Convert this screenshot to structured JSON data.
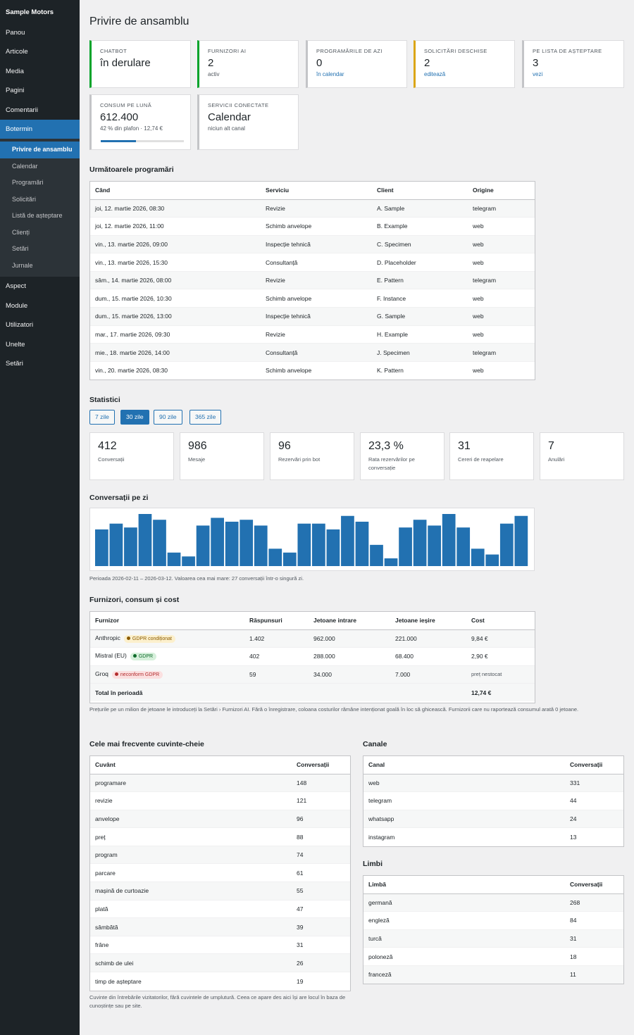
{
  "sidebar": {
    "brand": "Sample Motors",
    "top_items": [
      "Panou",
      "Articole",
      "Media",
      "Pagini",
      "Comentarii"
    ],
    "active_item": "Botermin",
    "sub_items": [
      "Privire de ansamblu",
      "Calendar",
      "Programări",
      "Solicitări",
      "Listă de așteptare",
      "Clienți",
      "Setări",
      "Jurnale"
    ],
    "bottom_items": [
      "Aspect",
      "Module",
      "Utilizatori",
      "Unelte",
      "Setări"
    ]
  },
  "page": {
    "title": "Privire de ansamblu"
  },
  "status_cards": [
    {
      "label": "Chatbot",
      "value": "în derulare",
      "sub": "",
      "accent": "#00a32a"
    },
    {
      "label": "Furnizori AI",
      "value": "2",
      "sub": "activ",
      "accent": "#00a32a"
    },
    {
      "label": "Programările de azi",
      "value": "0",
      "sub": "în calendar",
      "accent": "#c3c4c7"
    },
    {
      "label": "Solicitări deschise",
      "value": "2",
      "sub": "editează",
      "accent": "#dba617"
    },
    {
      "label": "Pe lista de așteptare",
      "value": "3",
      "sub": "vezi",
      "accent": "#c3c4c7"
    },
    {
      "label": "Consum pe lună",
      "value": "612.400",
      "sub": "42 % din plafon · 12,74 €",
      "accent": "#c3c4c7",
      "progress": 0.42
    },
    {
      "label": "Servicii conectate",
      "value": "Calendar",
      "sub": "niciun alt canal",
      "accent": "#c3c4c7"
    }
  ],
  "appointments": {
    "title": "Următoarele programări",
    "headers": [
      "Când",
      "Serviciu",
      "Client",
      "Origine"
    ],
    "rows": [
      [
        "joi, 12. martie 2026, 08:30",
        "Revizie",
        "A. Sample",
        "telegram"
      ],
      [
        "joi, 12. martie 2026, 11:00",
        "Schimb anvelope",
        "B. Example",
        "web"
      ],
      [
        "vin., 13. martie 2026, 09:00",
        "Inspecție tehnică",
        "C. Specimen",
        "web"
      ],
      [
        "vin., 13. martie 2026, 15:30",
        "Consultanță",
        "D. Placeholder",
        "web"
      ],
      [
        "sâm., 14. martie 2026, 08:00",
        "Revizie",
        "E. Pattern",
        "telegram"
      ],
      [
        "dum., 15. martie 2026, 10:30",
        "Schimb anvelope",
        "F. Instance",
        "web"
      ],
      [
        "dum., 15. martie 2026, 13:00",
        "Inspecție tehnică",
        "G. Sample",
        "web"
      ],
      [
        "mar., 17. martie 2026, 09:30",
        "Revizie",
        "H. Example",
        "web"
      ],
      [
        "mie., 18. martie 2026, 14:00",
        "Consultanță",
        "J. Specimen",
        "telegram"
      ],
      [
        "vin., 20. martie 2026, 08:30",
        "Schimb anvelope",
        "K. Pattern",
        "web"
      ]
    ]
  },
  "stats": {
    "title": "Statistici",
    "ranges": [
      "7 zile",
      "30 zile",
      "90 zile",
      "365 zile"
    ],
    "active_range": "30 zile",
    "cards": [
      {
        "value": "412",
        "label": "Conversații"
      },
      {
        "value": "986",
        "label": "Mesaje"
      },
      {
        "value": "96",
        "label": "Rezervări prin bot"
      },
      {
        "value": "23,3 %",
        "label": "Rata rezervărilor pe conversație"
      },
      {
        "value": "31",
        "label": "Cereri de reapelare"
      },
      {
        "value": "7",
        "label": "Anulări"
      }
    ]
  },
  "chart_title": "Conversații pe zi",
  "chart_data": {
    "type": "bar",
    "x": [
      "2026-02-11",
      "2026-02-12",
      "2026-02-13",
      "2026-02-14",
      "2026-02-15",
      "2026-02-16",
      "2026-02-17",
      "2026-02-18",
      "2026-02-19",
      "2026-02-20",
      "2026-02-21",
      "2026-02-22",
      "2026-02-23",
      "2026-02-24",
      "2026-02-25",
      "2026-02-26",
      "2026-02-27",
      "2026-02-28",
      "2026-03-01",
      "2026-03-02",
      "2026-03-03",
      "2026-03-04",
      "2026-03-05",
      "2026-03-06",
      "2026-03-07",
      "2026-03-08",
      "2026-03-09",
      "2026-03-10",
      "2026-03-11",
      "2026-03-12"
    ],
    "values": [
      19,
      22,
      20,
      27,
      24,
      7,
      5,
      21,
      25,
      23,
      24,
      21,
      9,
      7,
      22,
      22,
      19,
      26,
      23,
      11,
      4,
      20,
      24,
      21,
      27,
      20,
      9,
      6,
      22,
      26
    ],
    "ylim": [
      0,
      27
    ],
    "color": "#2271b1"
  },
  "chart_note": "Perioada 2026-02-11 – 2026-03-12. Valoarea cea mai mare: 27 conversații într-o singură zi.",
  "providers": {
    "title": "Furnizori, consum și cost",
    "headers": [
      "Furnizor",
      "Răspunsuri",
      "Jetoane intrare",
      "Jetoane ieșire",
      "Cost"
    ],
    "rows": [
      {
        "name": "Anthropic",
        "badge": "GDPR condiționat",
        "badge_type": "warn",
        "responses": "1.402",
        "tokens_in": "962.000",
        "tokens_out": "221.000",
        "cost": "9,84 €"
      },
      {
        "name": "Mistral (EU)",
        "badge": "GDPR",
        "badge_type": "ok",
        "responses": "402",
        "tokens_in": "288.000",
        "tokens_out": "68.400",
        "cost": "2,90 €"
      },
      {
        "name": "Groq",
        "badge": "neconform GDPR",
        "badge_type": "bad",
        "responses": "59",
        "tokens_in": "34.000",
        "tokens_out": "7.000",
        "cost": "preț nestocat"
      }
    ],
    "total_label": "Total în perioadă",
    "total_cost": "12,74 €",
    "note": "Prețurile pe un milion de jetoane le introduceți la Setări › Furnizori AI. Fără o înregistrare, coloana costurilor rămâne intenționat goală în loc să ghicească. Furnizorii care nu raportează consumul arată 0 jetoane."
  },
  "keywords": {
    "title": "Cele mai frecvente cuvinte-cheie",
    "headers": [
      "Cuvânt",
      "Conversații"
    ],
    "rows": [
      [
        "programare",
        "148"
      ],
      [
        "revizie",
        "121"
      ],
      [
        "anvelope",
        "96"
      ],
      [
        "preț",
        "88"
      ],
      [
        "program",
        "74"
      ],
      [
        "parcare",
        "61"
      ],
      [
        "mașină de curtoazie",
        "55"
      ],
      [
        "plată",
        "47"
      ],
      [
        "sâmbătă",
        "39"
      ],
      [
        "frâne",
        "31"
      ],
      [
        "schimb de ulei",
        "26"
      ],
      [
        "timp de așteptare",
        "19"
      ]
    ],
    "note": "Cuvinte din întrebările vizitatorilor, fără cuvintele de umplutură. Ceea ce apare des aici își are locul în baza de cunoștințe sau pe site."
  },
  "channels": {
    "title": "Canale",
    "headers": [
      "Canal",
      "Conversații"
    ],
    "rows": [
      [
        "web",
        "331"
      ],
      [
        "telegram",
        "44"
      ],
      [
        "whatsapp",
        "24"
      ],
      [
        "instagram",
        "13"
      ]
    ]
  },
  "languages": {
    "title": "Limbi",
    "headers": [
      "Limbă",
      "Conversații"
    ],
    "rows": [
      [
        "germană",
        "268"
      ],
      [
        "engleză",
        "84"
      ],
      [
        "turcă",
        "31"
      ],
      [
        "poloneză",
        "18"
      ],
      [
        "franceză",
        "11"
      ]
    ]
  }
}
